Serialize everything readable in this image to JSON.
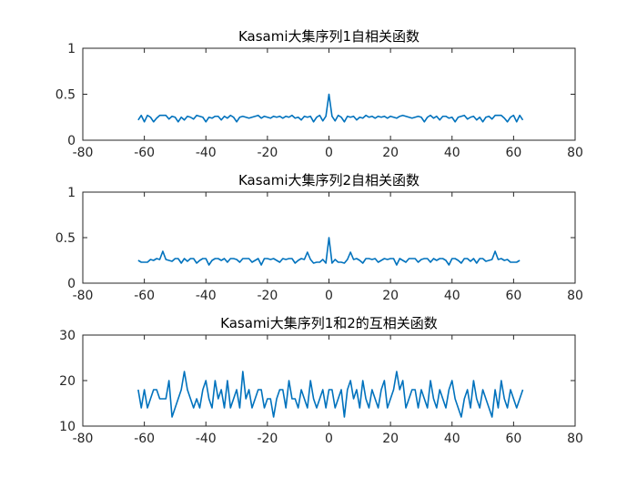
{
  "colors": {
    "series": "#0072BD",
    "axis": "#262626"
  },
  "chart_data": [
    {
      "type": "line",
      "title": "Kasami大集序列1自相关函数",
      "xlim": [
        -80,
        80
      ],
      "ylim": [
        0,
        1
      ],
      "xticks": [
        "-80",
        "-60",
        "-40",
        "-20",
        "0",
        "20",
        "40",
        "60",
        "80"
      ],
      "yticks": [
        "0",
        "0.5",
        "1"
      ],
      "grid": false,
      "series": [
        {
          "x_start": -62,
          "x_step": 1,
          "values": [
            0.22,
            0.27,
            0.2,
            0.27,
            0.25,
            0.2,
            0.24,
            0.27,
            0.27,
            0.27,
            0.23,
            0.26,
            0.25,
            0.2,
            0.25,
            0.22,
            0.26,
            0.25,
            0.23,
            0.27,
            0.26,
            0.25,
            0.2,
            0.25,
            0.24,
            0.26,
            0.26,
            0.22,
            0.26,
            0.24,
            0.27,
            0.25,
            0.2,
            0.25,
            0.26,
            0.25,
            0.24,
            0.25,
            0.26,
            0.27,
            0.24,
            0.26,
            0.25,
            0.24,
            0.26,
            0.25,
            0.26,
            0.24,
            0.26,
            0.25,
            0.27,
            0.24,
            0.25,
            0.22,
            0.26,
            0.25,
            0.26,
            0.2,
            0.25,
            0.27,
            0.21,
            0.26,
            0.5,
            0.26,
            0.21,
            0.27,
            0.25,
            0.2,
            0.26,
            0.25,
            0.26,
            0.22,
            0.25,
            0.24,
            0.27,
            0.25,
            0.26,
            0.24,
            0.26,
            0.25,
            0.26,
            0.24,
            0.26,
            0.25,
            0.24,
            0.26,
            0.27,
            0.26,
            0.25,
            0.24,
            0.25,
            0.26,
            0.25,
            0.2,
            0.25,
            0.27,
            0.24,
            0.26,
            0.22,
            0.26,
            0.26,
            0.24,
            0.25,
            0.2,
            0.25,
            0.26,
            0.27,
            0.23,
            0.25,
            0.26,
            0.22,
            0.25,
            0.2,
            0.25,
            0.26,
            0.23,
            0.27,
            0.27,
            0.27,
            0.24,
            0.2,
            0.25,
            0.27,
            0.2,
            0.27,
            0.22
          ]
        }
      ]
    },
    {
      "type": "line",
      "title": "Kasami大集序列2自相关函数",
      "xlim": [
        -80,
        80
      ],
      "ylim": [
        0,
        1
      ],
      "xticks": [
        "-80",
        "-60",
        "-40",
        "-20",
        "0",
        "20",
        "40",
        "60",
        "80"
      ],
      "yticks": [
        "0",
        "0.5",
        "1"
      ],
      "grid": false,
      "series": [
        {
          "x_start": -62,
          "x_step": 1,
          "values": [
            0.25,
            0.23,
            0.23,
            0.23,
            0.26,
            0.25,
            0.27,
            0.26,
            0.35,
            0.26,
            0.25,
            0.24,
            0.27,
            0.27,
            0.22,
            0.27,
            0.24,
            0.27,
            0.27,
            0.22,
            0.25,
            0.27,
            0.27,
            0.2,
            0.25,
            0.27,
            0.27,
            0.25,
            0.27,
            0.23,
            0.27,
            0.27,
            0.26,
            0.23,
            0.27,
            0.27,
            0.27,
            0.23,
            0.25,
            0.27,
            0.2,
            0.27,
            0.27,
            0.26,
            0.27,
            0.25,
            0.23,
            0.27,
            0.26,
            0.27,
            0.27,
            0.22,
            0.25,
            0.27,
            0.26,
            0.34,
            0.26,
            0.22,
            0.23,
            0.23,
            0.26,
            0.22,
            0.5,
            0.22,
            0.26,
            0.23,
            0.23,
            0.22,
            0.26,
            0.34,
            0.26,
            0.27,
            0.25,
            0.22,
            0.27,
            0.27,
            0.26,
            0.27,
            0.23,
            0.25,
            0.27,
            0.26,
            0.27,
            0.27,
            0.2,
            0.27,
            0.25,
            0.23,
            0.27,
            0.27,
            0.27,
            0.23,
            0.26,
            0.27,
            0.27,
            0.23,
            0.27,
            0.25,
            0.27,
            0.27,
            0.25,
            0.2,
            0.27,
            0.27,
            0.25,
            0.22,
            0.27,
            0.27,
            0.24,
            0.27,
            0.22,
            0.27,
            0.27,
            0.24,
            0.25,
            0.26,
            0.35,
            0.26,
            0.27,
            0.25,
            0.26,
            0.23,
            0.23,
            0.23,
            0.25
          ]
        }
      ]
    },
    {
      "type": "line",
      "title": "Kasami大集序列1和2的互相关函数",
      "xlim": [
        -80,
        80
      ],
      "ylim": [
        10,
        30
      ],
      "xticks": [
        "-80",
        "-60",
        "-40",
        "-20",
        "0",
        "20",
        "40",
        "60",
        "80"
      ],
      "yticks": [
        "10",
        "20",
        "30"
      ],
      "grid": false,
      "series": [
        {
          "x_start": -62,
          "x_step": 1,
          "values": [
            18,
            14,
            18,
            14,
            16,
            18,
            18,
            16,
            16,
            16,
            20,
            12,
            14,
            16,
            18,
            22,
            18,
            16,
            14,
            16,
            14,
            18,
            20,
            16,
            14,
            20,
            16,
            18,
            14,
            20,
            14,
            16,
            18,
            14,
            22,
            16,
            18,
            14,
            16,
            18,
            18,
            14,
            16,
            16,
            12,
            16,
            18,
            18,
            14,
            20,
            16,
            16,
            14,
            18,
            16,
            14,
            20,
            16,
            14,
            16,
            18,
            14,
            18,
            18,
            14,
            16,
            18,
            12,
            18,
            20,
            16,
            18,
            14,
            20,
            16,
            14,
            18,
            16,
            14,
            18,
            20,
            14,
            16,
            18,
            22,
            18,
            20,
            14,
            16,
            18,
            18,
            14,
            18,
            16,
            14,
            20,
            16,
            14,
            18,
            16,
            14,
            18,
            20,
            16,
            14,
            12,
            16,
            18,
            14,
            20,
            16,
            14,
            18,
            16,
            14,
            12,
            18,
            14,
            20,
            16,
            14,
            18,
            16,
            14,
            16,
            18
          ]
        }
      ]
    }
  ]
}
